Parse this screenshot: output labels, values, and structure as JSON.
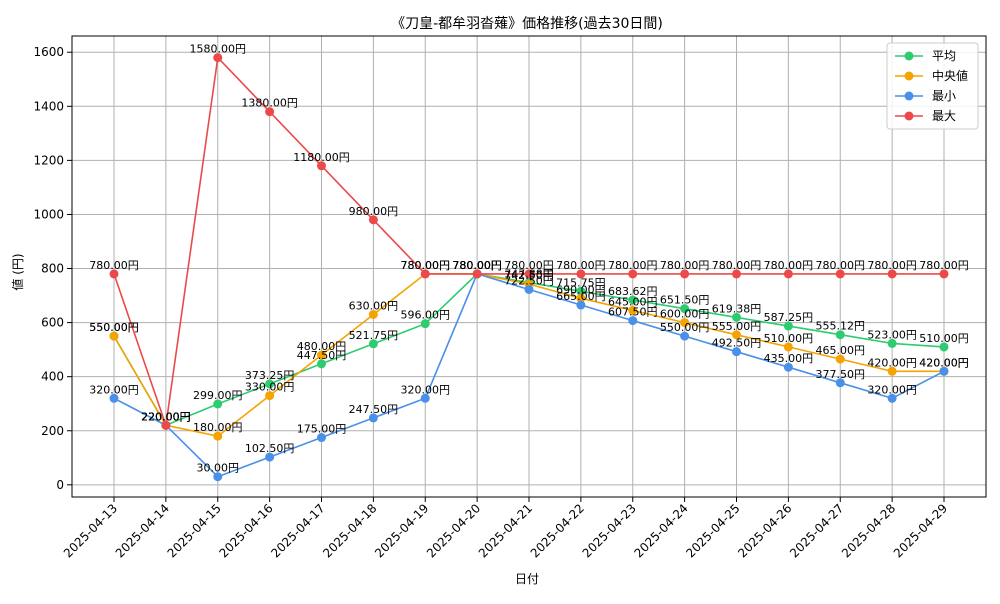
{
  "chart_data": {
    "type": "line",
    "title": "《刀皇-都牟羽沓薙》価格推移(過去30日間)",
    "xlabel": "日付",
    "ylabel": "値 (円)",
    "ylim": [
      -45,
      1660
    ],
    "yticks": [
      0,
      200,
      400,
      600,
      800,
      1000,
      1200,
      1400,
      1600
    ],
    "grid": true,
    "legend_position": "top-right",
    "value_suffix": "円",
    "categories": [
      "2025-04-13",
      "2025-04-14",
      "2025-04-15",
      "2025-04-16",
      "2025-04-17",
      "2025-04-18",
      "2025-04-19",
      "2025-04-20",
      "2025-04-21",
      "2025-04-22",
      "2025-04-23",
      "2025-04-24",
      "2025-04-25",
      "2025-04-26",
      "2025-04-27",
      "2025-04-28",
      "2025-04-29"
    ],
    "series": [
      {
        "name": "平均",
        "color": "#2ecc71",
        "values": [
          550,
          220,
          299,
          373.25,
          447.5,
          521.75,
          596,
          780,
          747.88,
          715.75,
          683.62,
          651.5,
          619.38,
          587.25,
          555.12,
          523,
          510
        ]
      },
      {
        "name": "中央値",
        "color": "#f5a300",
        "values": [
          550,
          220,
          180,
          330,
          480,
          630,
          780,
          780,
          742.5,
          690,
          645,
          600,
          555,
          510,
          465,
          420,
          420
        ]
      },
      {
        "name": "最小",
        "color": "#4a90e8",
        "values": [
          320,
          220,
          30,
          102.5,
          175,
          247.5,
          320,
          780,
          722.5,
          665,
          607.5,
          550,
          492.5,
          435,
          377.5,
          320,
          420
        ]
      },
      {
        "name": "最大",
        "color": "#ec4a4a",
        "values": [
          780,
          220,
          1580,
          1380,
          1180,
          980,
          780,
          780,
          780,
          780,
          780,
          780,
          780,
          780,
          780,
          780,
          780
        ]
      }
    ]
  }
}
